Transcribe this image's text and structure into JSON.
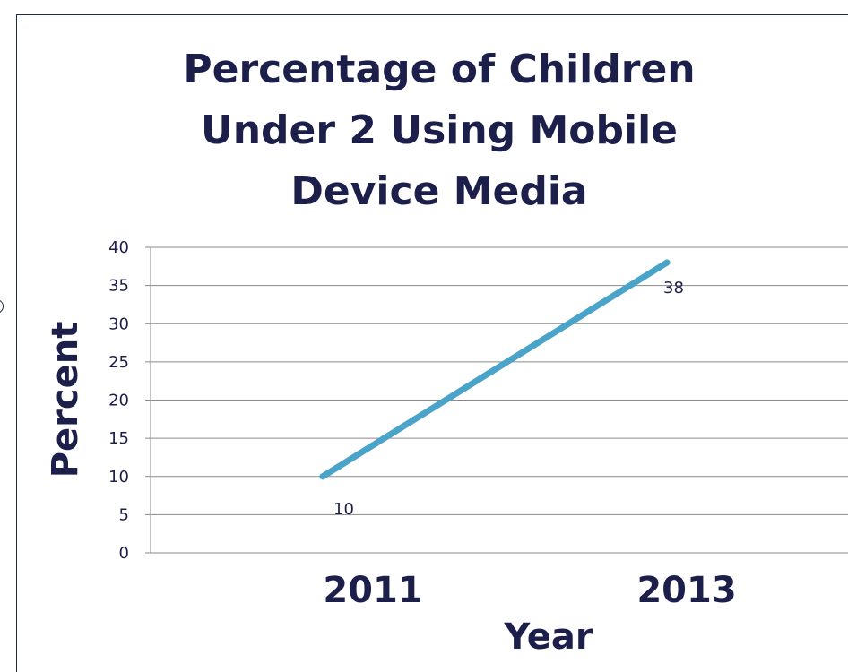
{
  "chart_data": {
    "type": "line",
    "title_lines": [
      "Percentage of Children",
      "Under 2 Using Mobile",
      "Device Media"
    ],
    "xlabel": "Year",
    "ylabel": "Percent",
    "categories": [
      "2011",
      "2013"
    ],
    "series": [
      {
        "values": [
          10,
          38
        ],
        "color": "#4aa3c8"
      }
    ],
    "data_labels": [
      "10",
      "38"
    ],
    "ylim": [
      0,
      40
    ],
    "yticks": [
      "0",
      "5",
      "10",
      "15",
      "20",
      "25",
      "30",
      "35",
      "40"
    ],
    "grid": true,
    "legend": "none"
  },
  "colors": {
    "title": "#1c1f4a",
    "axis_text": "#1c1f4a",
    "grid": "#8a8a8a",
    "frame": "#1f2a44"
  }
}
